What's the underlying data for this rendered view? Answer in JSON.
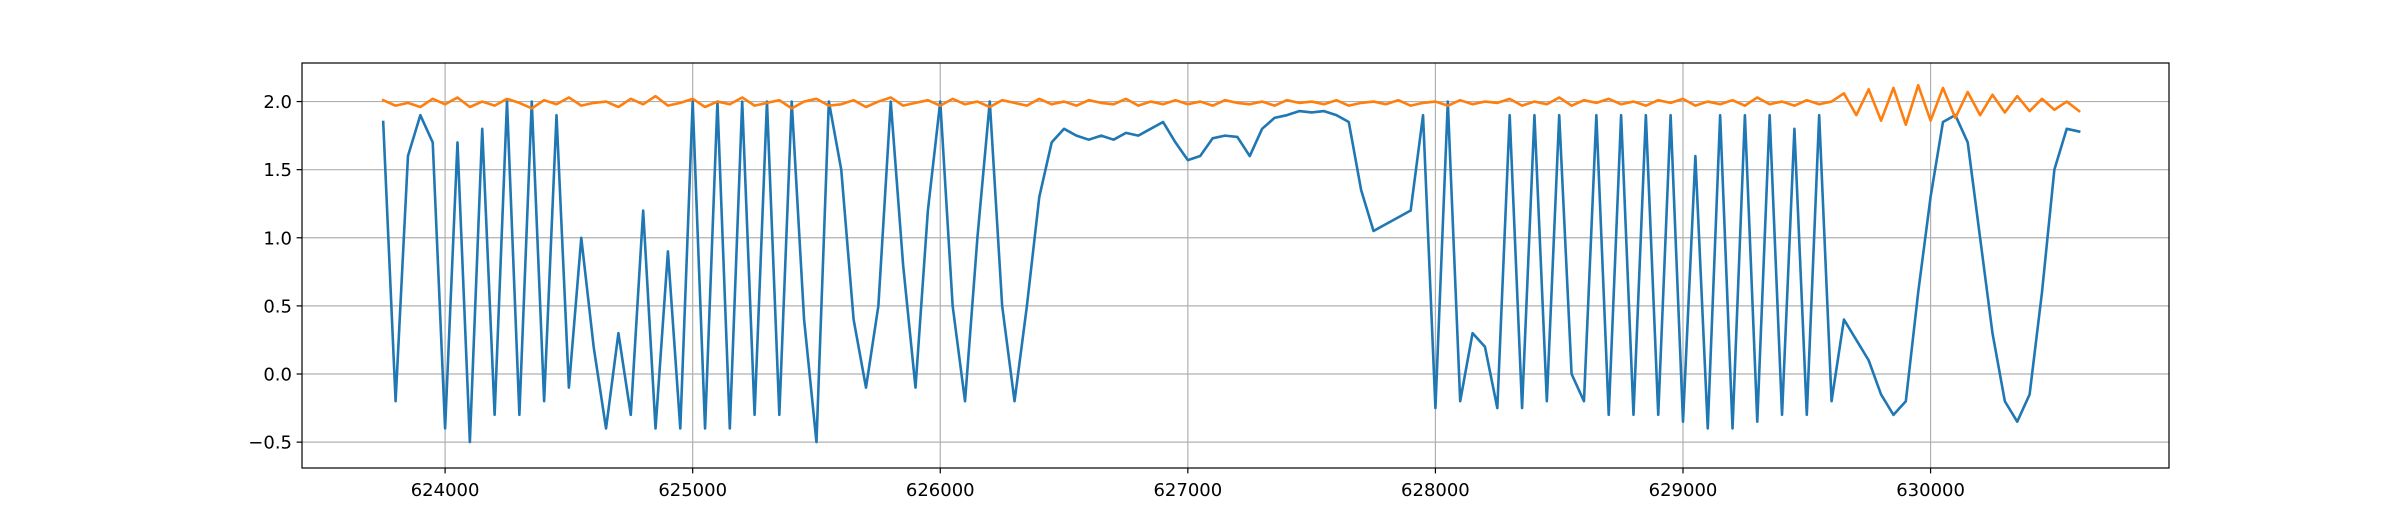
{
  "chart_data": {
    "type": "line",
    "x": [
      623750,
      623800,
      623850,
      623900,
      623950,
      624000,
      624050,
      624100,
      624150,
      624200,
      624250,
      624300,
      624350,
      624400,
      624450,
      624500,
      624550,
      624600,
      624650,
      624700,
      624750,
      624800,
      624850,
      624900,
      624950,
      625000,
      625050,
      625100,
      625150,
      625200,
      625250,
      625300,
      625350,
      625400,
      625450,
      625500,
      625550,
      625600,
      625650,
      625700,
      625750,
      625800,
      625850,
      625900,
      625950,
      626000,
      626050,
      626100,
      626150,
      626200,
      626250,
      626300,
      626350,
      626400,
      626450,
      626500,
      626550,
      626600,
      626650,
      626700,
      626750,
      626800,
      626850,
      626900,
      626950,
      627000,
      627050,
      627100,
      627150,
      627200,
      627250,
      627300,
      627350,
      627400,
      627450,
      627500,
      627550,
      627600,
      627650,
      627700,
      627750,
      627800,
      627850,
      627900,
      627950,
      628000,
      628050,
      628100,
      628150,
      628200,
      628250,
      628300,
      628350,
      628400,
      628450,
      628500,
      628550,
      628600,
      628650,
      628700,
      628750,
      628800,
      628850,
      628900,
      628950,
      629000,
      629050,
      629100,
      629150,
      629200,
      629250,
      629300,
      629350,
      629400,
      629450,
      629500,
      629550,
      629600,
      629650,
      629700,
      629750,
      629800,
      629850,
      629900,
      629950,
      630000,
      630050,
      630100,
      630150,
      630200,
      630250,
      630300,
      630350,
      630400,
      630450,
      630500,
      630550,
      630600
    ],
    "series": [
      {
        "color": "#1f77b4",
        "values": [
          1.85,
          -0.2,
          1.6,
          1.9,
          1.7,
          -0.4,
          1.7,
          -0.5,
          1.8,
          -0.3,
          2.0,
          -0.3,
          2.0,
          -0.2,
          1.9,
          -0.1,
          1.0,
          0.2,
          -0.4,
          0.3,
          -0.3,
          1.2,
          -0.4,
          0.9,
          -0.4,
          2.0,
          -0.4,
          2.0,
          -0.4,
          2.0,
          -0.3,
          2.0,
          -0.3,
          2.0,
          0.4,
          -0.5,
          2.0,
          1.5,
          0.4,
          -0.1,
          0.5,
          2.0,
          0.8,
          -0.1,
          1.2,
          2.0,
          0.5,
          -0.2,
          1.0,
          2.0,
          0.5,
          -0.2,
          0.5,
          1.3,
          1.7,
          1.8,
          1.75,
          1.72,
          1.75,
          1.72,
          1.77,
          1.75,
          1.8,
          1.85,
          1.7,
          1.57,
          1.6,
          1.73,
          1.75,
          1.74,
          1.6,
          1.8,
          1.88,
          1.9,
          1.93,
          1.92,
          1.93,
          1.9,
          1.85,
          1.35,
          1.05,
          1.1,
          1.15,
          1.2,
          1.9,
          -0.25,
          2.0,
          -0.2,
          0.3,
          0.2,
          -0.25,
          1.9,
          -0.25,
          1.9,
          -0.2,
          1.9,
          0.0,
          -0.2,
          1.9,
          -0.3,
          1.9,
          -0.3,
          1.9,
          -0.3,
          1.9,
          -0.35,
          1.6,
          -0.4,
          1.9,
          -0.4,
          1.9,
          -0.35,
          1.9,
          -0.3,
          1.8,
          -0.3,
          1.9,
          -0.2,
          0.4,
          0.25,
          0.1,
          -0.15,
          -0.3,
          -0.2,
          0.6,
          1.3,
          1.85,
          1.9,
          1.7,
          1.0,
          0.3,
          -0.2,
          -0.35,
          -0.15,
          0.6,
          1.5,
          1.8,
          1.78
        ]
      },
      {
        "color": "#ff7f0e",
        "values": [
          2.01,
          1.97,
          1.99,
          1.96,
          2.02,
          1.98,
          2.03,
          1.96,
          2.0,
          1.97,
          2.02,
          1.99,
          1.95,
          2.01,
          1.98,
          2.03,
          1.97,
          1.99,
          2.0,
          1.96,
          2.02,
          1.98,
          2.04,
          1.97,
          1.99,
          2.02,
          1.96,
          2.0,
          1.98,
          2.03,
          1.97,
          1.99,
          2.01,
          1.95,
          2.0,
          2.02,
          1.97,
          1.98,
          2.01,
          1.96,
          2.0,
          2.03,
          1.97,
          1.99,
          2.01,
          1.97,
          2.02,
          1.98,
          2.0,
          1.96,
          2.01,
          1.99,
          1.97,
          2.02,
          1.98,
          2.0,
          1.97,
          2.01,
          1.99,
          1.98,
          2.02,
          1.97,
          2.0,
          1.98,
          2.01,
          1.98,
          2.0,
          1.97,
          2.01,
          1.99,
          1.98,
          2.0,
          1.97,
          2.01,
          1.99,
          2.0,
          1.98,
          2.01,
          1.97,
          1.99,
          2.0,
          1.98,
          2.01,
          1.97,
          1.99,
          2.0,
          1.97,
          2.01,
          1.98,
          2.0,
          1.99,
          2.02,
          1.97,
          2.0,
          1.98,
          2.03,
          1.97,
          2.01,
          1.99,
          2.02,
          1.98,
          2.0,
          1.97,
          2.01,
          1.99,
          2.02,
          1.97,
          2.0,
          1.98,
          2.01,
          1.97,
          2.03,
          1.98,
          2.0,
          1.97,
          2.01,
          1.98,
          2.0,
          2.06,
          1.9,
          2.09,
          1.86,
          2.1,
          1.83,
          2.12,
          1.86,
          2.1,
          1.88,
          2.07,
          1.9,
          2.05,
          1.92,
          2.04,
          1.93,
          2.02,
          1.94,
          2.0,
          1.93
        ]
      }
    ],
    "xlim": [
      623422,
      630963
    ],
    "xticks": [
      624000,
      625000,
      626000,
      627000,
      628000,
      629000,
      630000
    ],
    "ylim": [
      -0.69,
      2.283
    ],
    "yticks": [
      {
        "value": -0.5,
        "label": "−0.5"
      },
      {
        "value": 0,
        "label": "0.0"
      },
      {
        "value": 0.5,
        "label": "0.5"
      },
      {
        "value": 1,
        "label": "1.0"
      },
      {
        "value": 1.5,
        "label": "1.5"
      },
      {
        "value": 2,
        "label": "2.0"
      }
    ],
    "grid": true
  }
}
